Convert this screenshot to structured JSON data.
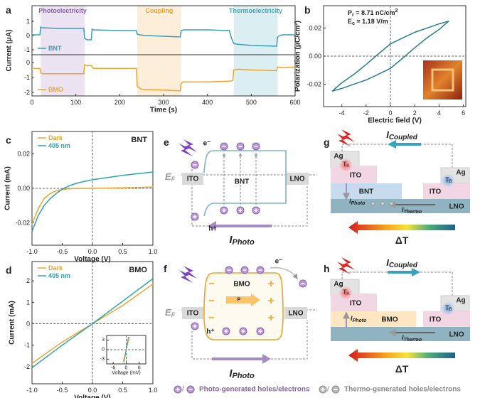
{
  "panel_labels": [
    "a",
    "b",
    "c",
    "d",
    "e",
    "f",
    "g",
    "h"
  ],
  "chart_data": [
    {
      "type": "line",
      "ylabel": "Current (μA)",
      "x": [
        0,
        18,
        20,
        22,
        60,
        118,
        120,
        125,
        135,
        137,
        140,
        200,
        238,
        240,
        245,
        260,
        300,
        338,
        340,
        345,
        400,
        450,
        455,
        458,
        460,
        465,
        500,
        558,
        560,
        565,
        570,
        600
      ],
      "series": [
        {
          "name": "BNT",
          "color": "#3a9db8",
          "values": [
            0.05,
            0.05,
            0.6,
            0.55,
            0.5,
            0.5,
            -0.2,
            -0.3,
            -0.3,
            0.45,
            0.4,
            0.35,
            0.35,
            0.1,
            0.05,
            0.0,
            -0.05,
            -0.1,
            0.35,
            0.4,
            0.4,
            0.35,
            -0.2,
            -0.4,
            -0.55,
            -0.6,
            -0.7,
            -0.75,
            -0.1,
            0.0,
            0.05,
            0.05
          ]
        }
      ],
      "xlim": [
        0,
        600
      ],
      "ylim": [
        -1.35,
        2.1
      ],
      "yticks": [
        -1,
        0,
        1
      ],
      "legend": "lower-left",
      "regions": [
        {
          "label": "Photoelectricity",
          "start": 20,
          "end": 120,
          "color": "#8e5cb8"
        },
        {
          "label": "Coupling",
          "start": 240,
          "end": 340,
          "color": "#f0a32a"
        },
        {
          "label": "Thermoelectricity",
          "start": 460,
          "end": 560,
          "color": "#3aa8b8"
        }
      ]
    },
    {
      "type": "line",
      "xlabel": "Time (s)",
      "x": [
        0,
        18,
        20,
        25,
        60,
        118,
        120,
        125,
        135,
        140,
        200,
        238,
        240,
        250,
        300,
        338,
        340,
        345,
        400,
        450,
        458,
        460,
        470,
        500,
        558,
        560,
        570,
        600
      ],
      "series": [
        {
          "name": "BMO",
          "color": "#f0a32a",
          "values": [
            -0.4,
            -0.4,
            -0.7,
            -0.75,
            -0.75,
            -0.75,
            -0.15,
            -0.2,
            -0.2,
            -0.4,
            -0.4,
            -0.4,
            -1.6,
            -1.8,
            -1.85,
            -1.9,
            -1.4,
            -1.3,
            -1.3,
            -1.25,
            -1.2,
            -0.5,
            -0.45,
            -0.5,
            -0.55,
            -0.3,
            -0.35,
            -0.3
          ]
        }
      ],
      "xlim": [
        0,
        600
      ],
      "ylim": [
        -2.24,
        0.52
      ],
      "xticks": [
        0,
        100,
        200,
        300,
        400,
        500,
        600
      ],
      "yticks": [
        -2,
        -1,
        0
      ],
      "legend": "lower-left"
    },
    {
      "type": "line",
      "xlabel": "Electric field (V)",
      "ylabel": "Polarization (μC/cm²)",
      "annotations": [
        [
          "P",
          "r",
          " = 8.71 nC/cm",
          "2"
        ],
        [
          "E",
          "c",
          " = 1.18 V/m"
        ]
      ],
      "series": [
        {
          "color": "#2a7f8f",
          "x": [
            4.8,
            4,
            3,
            2,
            1,
            0,
            -1,
            -2,
            -3,
            -4,
            -4.8
          ],
          "values": [
            0.025,
            0.023,
            0.02,
            0.017,
            0.013,
            0.0087,
            0.0015,
            -0.006,
            -0.013,
            -0.019,
            -0.025
          ]
        },
        {
          "color": "#2a7f8f",
          "x": [
            -4.8,
            -4,
            -3,
            -2,
            -1,
            0,
            1,
            2,
            3,
            4,
            4.8
          ],
          "values": [
            -0.025,
            -0.023,
            -0.02,
            -0.017,
            -0.013,
            -0.0087,
            -0.0015,
            0.006,
            0.013,
            0.019,
            0.025
          ]
        }
      ],
      "xlim": [
        -5.5,
        6.2
      ],
      "ylim": [
        -0.036,
        0.036
      ],
      "xticks": [
        -4,
        -2,
        0,
        2,
        4,
        6
      ],
      "yticks": [
        -0.02,
        {
          "value": 0,
          "label": "0.00"
        },
        0.02
      ],
      "zero_lines": true
    },
    {
      "type": "line",
      "label": "BNT",
      "xlabel": "Voltage (V)",
      "ylabel": "Current (mA)",
      "x": [
        -1,
        -0.9,
        -0.8,
        -0.7,
        -0.6,
        -0.5,
        -0.4,
        -0.3,
        -0.2,
        0,
        0.5,
        1
      ],
      "series": [
        {
          "name": "Dark",
          "color": "#f0a32a",
          "values": [
            -0.021,
            -0.012,
            -0.006,
            -0.003,
            -0.0015,
            -0.0007,
            -0.0003,
            -0.0001,
            0,
            0,
            0.0003,
            0.0008
          ]
        },
        {
          "name": "405 nm",
          "color": "#2ea3a8",
          "values": [
            -0.025,
            -0.016,
            -0.01,
            -0.006,
            -0.003,
            -0.0005,
            0.0012,
            0.0025,
            0.0035,
            0.005,
            0.0075,
            0.0095
          ]
        }
      ],
      "xlim": [
        -1,
        1
      ],
      "ylim": [
        -0.033,
        0.033
      ],
      "xticks": [
        {
          "value": -1,
          "label": "-1.0"
        },
        -0.5,
        {
          "value": 0,
          "label": "0.0"
        },
        0.5,
        {
          "value": 1,
          "label": "1.0"
        }
      ],
      "yticks": [
        -0.02,
        {
          "value": 0,
          "label": "0.00"
        },
        0.02
      ],
      "legend": "upper-left",
      "zero_lines": true
    },
    {
      "type": "line",
      "label": "BMO",
      "xlabel": "Voltage (V)",
      "ylabel": "Current (mA)",
      "x": [
        -1,
        -0.5,
        0,
        0.5,
        1
      ],
      "series": [
        {
          "name": "Dark",
          "color": "#f0a32a",
          "values": [
            -1.85,
            -0.85,
            0,
            0.85,
            1.85
          ]
        },
        {
          "name": "405 nm",
          "color": "#2ea3a8",
          "values": [
            -2.05,
            -1.0,
            0,
            1.05,
            2.1
          ]
        }
      ],
      "xlim": [
        -1,
        1
      ],
      "ylim": [
        -2.8,
        2.9
      ],
      "xticks": [
        {
          "value": -1,
          "label": "-1.0"
        },
        -0.5,
        {
          "value": 0,
          "label": "0.0"
        },
        0.5,
        {
          "value": 1,
          "label": "1.0"
        }
      ],
      "yticks": [
        -2,
        -1,
        0,
        1,
        2
      ],
      "legend": "upper-left",
      "zero_lines": true
    },
    {
      "type": "line",
      "xlabel": "Voltage (mV)",
      "series": [
        {
          "color": "#f0a32a",
          "x": [
            -1.5,
            1.5
          ],
          "values": [
            -4,
            4
          ]
        },
        {
          "color": "#2ea3a8",
          "x": [
            -1,
            1
          ],
          "values": [
            -4,
            4
          ]
        }
      ],
      "xlim": [
        -9,
        9
      ],
      "ylim": [
        -4.5,
        4.5
      ],
      "xticks": [
        -6,
        0,
        6
      ],
      "yticks": [
        -3,
        0,
        3
      ],
      "zero_lines": true
    }
  ],
  "diagram_e": {
    "ef": [
      "E",
      "F"
    ],
    "left": "ITO",
    "center": "BNT",
    "right": "LNO",
    "electron": "e⁻",
    "hole": "h⁺",
    "current": [
      "I",
      "Photo"
    ]
  },
  "diagram_f": {
    "ef": [
      "E",
      "F"
    ],
    "left": "ITO",
    "center": "BMO",
    "right": "LNO",
    "polarization": "P",
    "electron": "e⁻",
    "hole": "h⁺",
    "current": [
      "I",
      "Photo"
    ]
  },
  "diagram_g": {
    "current": [
      "I",
      "Coupled"
    ],
    "ag_left": "Ag",
    "ag_right": "Ag",
    "ito_left": "ITO",
    "ito_right": "ITO",
    "film": "BNT",
    "substrate": "LNO",
    "ta": [
      "T",
      "A"
    ],
    "tb": [
      "T",
      "B"
    ],
    "i_photo": [
      "I",
      "Photo"
    ],
    "i_thermo": [
      "I",
      "Thermo"
    ],
    "gradient": "ΔT"
  },
  "diagram_h": {
    "current": [
      "I",
      "Coupled"
    ],
    "ag_left": "Ag",
    "ag_right": "Ag",
    "ito_left": "ITO",
    "ito_right": "ITO",
    "film": "BMO",
    "substrate": "LNO",
    "ta": [
      "T",
      "A"
    ],
    "tb": [
      "T",
      "B"
    ],
    "i_photo": [
      "I",
      "Photo"
    ],
    "i_thermo": [
      "I",
      "Thermo"
    ],
    "gradient": "ΔT"
  },
  "legend": {
    "slash": "/",
    "photo": "Photo-generated holes/electrons",
    "thermo": "Thermo-generated holes/electrons"
  }
}
